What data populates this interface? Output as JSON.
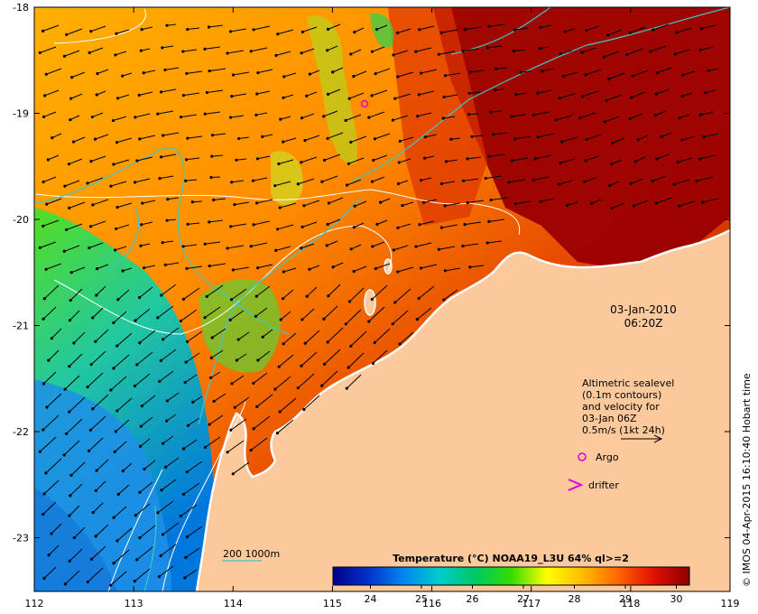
{
  "map": {
    "lon_ticks": [
      "112",
      "113",
      "114",
      "115",
      "116",
      "117",
      "118",
      "119"
    ],
    "lat_ticks": [
      "-18",
      "-19",
      "-20",
      "-21",
      "-22",
      "-23"
    ],
    "land_color": "#fcc99c",
    "coast_color": "#ffffff",
    "contour_color": "#3cc8c8"
  },
  "timestamp": {
    "date": "03-Jan-2010",
    "time": "06:20Z"
  },
  "legend": {
    "line1": "Altimetric sealevel",
    "line2": "(0.1m contours)",
    "line3": "and velocity for",
    "line4": "03-Jan 06Z",
    "line5": "0.5m/s (1kt 24h)",
    "argo_label": "Argo",
    "argo_color": "#e000e0",
    "drifter_label": "drifter",
    "drifter_color": "#e000e0"
  },
  "depth_legend": {
    "label": "200  1000m"
  },
  "colorbar": {
    "title": "Temperature (°C) NOAA19_L3U 64% ql>=2",
    "ticks": [
      "24",
      "25",
      "26",
      "27",
      "28",
      "29",
      "30"
    ],
    "colors": [
      "#00008c",
      "#0033cc",
      "#0088ee",
      "#00cccc",
      "#00c864",
      "#33dd00",
      "#ffff00",
      "#ffbb00",
      "#ff6600",
      "#dd1100",
      "#8c0000"
    ]
  },
  "credit": "© IMOS 04-Apr-2015 16:10:40 Hobart time"
}
